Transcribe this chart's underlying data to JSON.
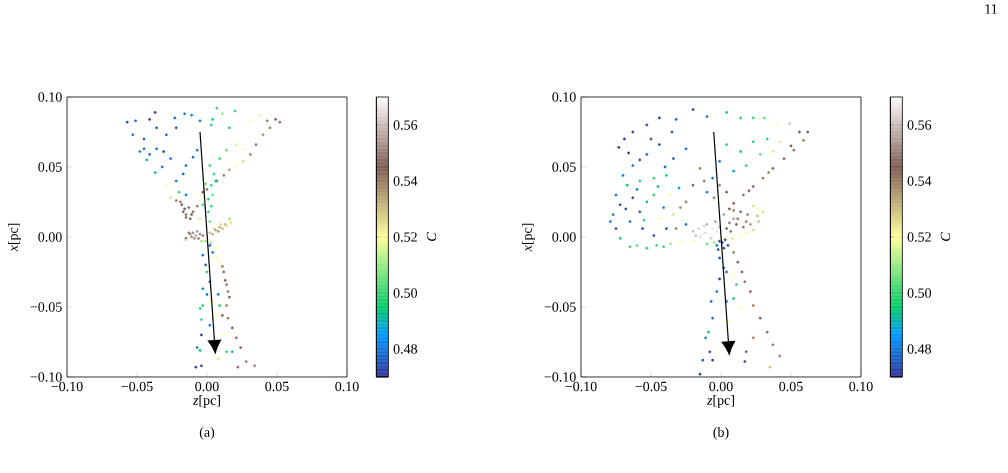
{
  "chart_data": [
    {
      "type": "scatter",
      "title": "(a)",
      "xlabel": "*z*[pc]",
      "ylabel": "*x*[pc]",
      "clabel": "*C*",
      "xlim": [
        -0.1,
        0.1
      ],
      "ylim": [
        -0.1,
        0.1
      ],
      "xticks": [
        {
          "value": -0.1,
          "label": "−0.10"
        },
        {
          "value": -0.05,
          "label": "−0.05"
        },
        {
          "value": 0,
          "label": "0.00"
        },
        0.05,
        {
          "value": 0.1,
          "label": "0.10"
        }
      ],
      "yticks": [
        {
          "value": -0.1,
          "label": "−0.10"
        },
        {
          "value": -0.05,
          "label": "−0.05"
        },
        {
          "value": 0,
          "label": "0.00"
        },
        0.05,
        {
          "value": 0.1,
          "label": "0.10"
        }
      ],
      "clim": [
        0.47,
        0.57
      ],
      "cticks": [
        0.48,
        {
          "value": 0.5,
          "label": "0.50"
        },
        0.52,
        0.54,
        0.56
      ],
      "marker": "circle",
      "series": [
        {
          "x": [
            -0.057,
            -0.051,
            -0.041,
            -0.037,
            -0.023,
            -0.016,
            -0.011,
            -0.005,
            0.004,
            0.007,
            0.011,
            0.02,
            0.016,
            0.003,
            0.031,
            0.038,
            0.043,
            0.049,
            0.052,
            0.045,
            0.04,
            0.035,
            0.031,
            0.026,
            0.021,
            0.016,
            0.012,
            0.007,
            0.003,
            0,
            -0.003,
            0.026,
            0.021,
            0.014,
            0.009,
            0.002,
            0.005,
            -0.007,
            -0.01,
            -0.015,
            -0.017,
            -0.022,
            -0.026,
            -0.031,
            -0.036,
            -0.041,
            -0.045,
            -0.048,
            -0.053,
            -0.045,
            -0.043,
            -0.037,
            -0.032,
            -0.029,
            -0.022,
            -0.036,
            -0.029,
            -0.026,
            -0.022,
            -0.018,
            -0.017,
            -0.015,
            -0.012,
            -0.01,
            -0.007,
            -0.015,
            -0.02,
            -0.005,
            -0.003,
            -0.005,
            0.001,
            0.002,
            -0.012,
            -0.007,
            -0.003,
            -0.009,
            -0.015,
            0.002,
            0.006,
            0.009,
            0.013,
            0.016,
            0.016,
            -0.001,
            -0.015,
            0.002,
            0.004,
            0.006,
            0.007,
            0.009,
            0.011,
            0.012,
            0.013,
            0.014,
            0.015,
            0.016,
            0.014,
            0.011,
            0.015,
            0.018,
            0.021,
            0.024,
            0.028,
            0.034,
            0.022,
            0.008,
            -0.003,
            -0.001,
            0,
            0.002,
            -0.003,
            0,
            -0.003,
            -0.005,
            0.003,
            0.008,
            0.009,
            0.007,
            -0.004,
            0.002,
            -0.004,
            -0.007,
            -0.005,
            -0.008,
            -0.004,
            0.014,
            0.018,
            0.012,
            -0.01,
            -0.005,
            -0.011,
            -0.006,
            -0.013,
            -0.008,
            0.004,
            0.008,
            0.011,
            0.014,
            0.005,
            0.01,
            0.017,
            0,
            -0.004,
            0.003,
            -0.016,
            -0.013,
            -0.015,
            -0.011,
            -0.019,
            0.001,
            0.004,
            0.003,
            -0.001,
            0.006
          ],
          "values": [
            0.082,
            0.083,
            0.084,
            0.089,
            0.085,
            0.088,
            0.087,
            0.083,
            0.084,
            0.092,
            0.088,
            0.09,
            0.078,
            0.08,
            0.082,
            0.087,
            0.083,
            0.084,
            0.082,
            0.078,
            0.073,
            0.066,
            0.059,
            0.054,
            0.051,
            0.048,
            0.044,
            0.04,
            0.037,
            0.034,
            0.032,
            0.063,
            0.066,
            0.062,
            0.056,
            0.051,
            0.045,
            0.062,
            0.057,
            0.051,
            0.045,
            0.04,
            0.056,
            0.061,
            0.063,
            0.059,
            0.063,
            0.061,
            0.073,
            0.07,
            0.055,
            0.046,
            0.05,
            0.073,
            0.078,
            0.078,
            0.037,
            0.028,
            0.026,
            0.023,
            0.018,
            0.016,
            0.013,
            0.018,
            0.022,
            0.03,
            0.032,
            0.03,
            0.023,
            0.013,
            0.018,
            0.011,
            0.002,
            0.004,
            0.001,
            -0.001,
            -0.001,
            0.003,
            0.005,
            0.007,
            0.009,
            0.011,
            0.013,
            -0.003,
            -0.002,
            -0.006,
            -0.011,
            -0.008,
            -0.014,
            -0.018,
            -0.021,
            -0.025,
            -0.031,
            -0.034,
            -0.039,
            -0.043,
            -0.049,
            -0.056,
            -0.058,
            -0.065,
            -0.072,
            -0.079,
            -0.089,
            -0.092,
            -0.093,
            -0.087,
            -0.013,
            -0.02,
            -0.025,
            -0.032,
            -0.037,
            -0.041,
            -0.049,
            -0.051,
            -0.046,
            -0.041,
            -0.049,
            -0.056,
            -0.059,
            -0.063,
            -0.07,
            -0.079,
            -0.081,
            -0.093,
            -0.092,
            -0.082,
            -0.082,
            -0.07,
            0.003,
            0.002,
            0,
            -0.001,
            0.003,
            0.001,
            0.002,
            0.004,
            0.006,
            0.008,
            0.006,
            0.009,
            0.01,
            -0.002,
            -0.003,
            -0.004,
            0.02,
            0.021,
            0.014,
            0.016,
            0.025,
            0.027,
            0.03,
            0.022,
            0.038,
            0.04
          ],
          "cvalues": [
            0.475,
            0.478,
            0.472,
            0.472,
            0.478,
            0.48,
            0.482,
            0.48,
            0.495,
            0.5,
            0.51,
            0.5,
            0.497,
            0.5,
            0.52,
            0.522,
            0.54,
            0.545,
            0.548,
            0.54,
            0.537,
            0.542,
            0.54,
            0.525,
            0.52,
            0.535,
            0.54,
            0.545,
            0.5,
            0.54,
            0.545,
            0.52,
            0.515,
            0.505,
            0.5,
            0.5,
            0.5,
            0.48,
            0.478,
            0.48,
            0.478,
            0.48,
            0.478,
            0.472,
            0.478,
            0.48,
            0.48,
            0.482,
            0.478,
            0.475,
            0.49,
            0.495,
            0.48,
            0.478,
            0.474,
            0.474,
            0.52,
            0.525,
            0.54,
            0.545,
            0.545,
            0.548,
            0.545,
            0.543,
            0.54,
            0.48,
            0.5,
            0.52,
            0.5,
            0.515,
            0.5,
            0.505,
            0.552,
            0.555,
            0.55,
            0.553,
            0.545,
            0.53,
            0.535,
            0.532,
            0.53,
            0.52,
            0.51,
            0.51,
            0.51,
            0.48,
            0.48,
            0.52,
            0.52,
            0.52,
            0.54,
            0.543,
            0.545,
            0.542,
            0.54,
            0.545,
            0.54,
            0.545,
            0.54,
            0.545,
            0.548,
            0.545,
            0.55,
            0.55,
            0.548,
            0.525,
            0.48,
            0.478,
            0.5,
            0.48,
            0.482,
            0.48,
            0.497,
            0.5,
            0.52,
            0.48,
            0.495,
            0.52,
            0.5,
            0.48,
            0.472,
            0.48,
            0.495,
            0.472,
            0.472,
            0.5,
            0.49,
            0.52,
            0.553,
            0.552,
            0.552,
            0.55,
            0.55,
            0.556,
            0.532,
            0.535,
            0.53,
            0.525,
            0.525,
            0.525,
            0.515,
            0.52,
            0.51,
            0.51,
            0.545,
            0.543,
            0.548,
            0.545,
            0.54,
            0.5,
            0.505,
            0.5,
            0.505,
            0.5
          ]
        }
      ],
      "annotations": [
        "11"
      ]
    },
    {
      "type": "scatter",
      "title": "(b)",
      "xlabel": "*z*[pc]",
      "ylabel": "*x*[pc]",
      "clabel": "*C*",
      "xlim": [
        -0.1,
        0.1
      ],
      "ylim": [
        -0.1,
        0.1
      ],
      "xticks": [
        {
          "value": -0.1,
          "label": "−0.10"
        },
        {
          "value": -0.05,
          "label": "−0.05"
        },
        {
          "value": 0,
          "label": "0.00"
        },
        0.05,
        {
          "value": 0.1,
          "label": "0.10"
        }
      ],
      "yticks": [
        {
          "value": -0.1,
          "label": "−0.10"
        },
        {
          "value": -0.05,
          "label": "−0.05"
        },
        {
          "value": 0,
          "label": "0.00"
        },
        0.05,
        {
          "value": 0.1,
          "label": "0.10"
        }
      ],
      "clim": [
        0.47,
        0.57
      ],
      "cticks": [
        0.48,
        {
          "value": 0.5,
          "label": "0.50"
        },
        0.52,
        0.54,
        0.56
      ],
      "marker": "circle",
      "series": [
        {
          "x": [
            -0.073,
            -0.069,
            -0.063,
            -0.053,
            -0.044,
            -0.032,
            -0.02,
            -0.01,
            0.004,
            0.014,
            0.023,
            0.031,
            0.04,
            0.049,
            0.056,
            0.062,
            0.059,
            0.052,
            0.045,
            0.037,
            0.03,
            0.023,
            0.016,
            0.009,
            0.042,
            0.037,
            0.033,
            0.028,
            0.023,
            0.018,
            0.014,
            0.009,
            0.004,
            -0.001,
            -0.006,
            -0.01,
            -0.001,
            0.004,
            -0.015,
            -0.02,
            -0.025,
            -0.029,
            -0.034,
            -0.025,
            -0.034,
            -0.044,
            -0.053,
            -0.063,
            -0.07,
            -0.067,
            -0.058,
            -0.048,
            -0.039,
            -0.075,
            -0.072,
            -0.077,
            -0.079,
            -0.075,
            -0.072,
            -0.065,
            -0.053,
            -0.041,
            -0.029,
            -0.02,
            -0.01,
            -0.063,
            -0.058,
            -0.065,
            -0.056,
            -0.048,
            -0.044,
            -0.039,
            -0.048,
            -0.036,
            -0.032,
            -0.025,
            -0.041,
            -0.053,
            -0.011,
            -0.02,
            -0.015,
            -0.008,
            -0.003,
            -0.01,
            -0.004,
            0.004,
            0.011,
            0.018,
            0.026,
            0.03,
            0.023,
            0.014,
            0.009,
            0.004,
            0.014,
            0.023,
            0.018,
            -0.001,
            0.002,
            -0.003,
            0.005,
            -0.001,
            0.002,
            -0.001,
            -0.003,
            -0.007,
            -0.006,
            -0.009,
            -0.011,
            -0.008,
            -0.013,
            -0.006,
            -0.015,
            0.009,
            0.012,
            0.015,
            0.017,
            0.021,
            0.023,
            0.028,
            0.033,
            0.037,
            0.042,
            0.035,
            0.011,
            0.009,
            0.014,
            0.004,
            0.005,
            0.018,
            0.017,
            0.023,
            0.004,
            0.009,
            -0.016,
            -0.006,
            -0.013,
            -0.007,
            -0.018,
            -0.001,
            -0.012,
            0.007,
            0.016,
            0.021,
            0.027,
            0.012,
            0.019,
            0.027,
            0.009,
            0.002,
            0.006,
            0,
            0.008,
            -0.005,
            -0.036,
            -0.046,
            -0.06,
            -0.06,
            -0.068,
            -0.055,
            -0.045,
            -0.03,
            -0.04,
            -0.058,
            -0.066,
            -0.05,
            -0.035,
            0.05,
            0.034,
            0.02,
            0.006,
            -0.012,
            -0.005,
            0.001,
            0.003,
            -0.002
          ],
          "values": [
            0.064,
            0.07,
            0.075,
            0.08,
            0.085,
            0.084,
            0.091,
            0.086,
            0.089,
            0.085,
            0.085,
            0.085,
            0.08,
            0.081,
            0.075,
            0.075,
            0.069,
            0.062,
            0.056,
            0.049,
            0.042,
            0.036,
            0.03,
            0.024,
            0.068,
            0.061,
            0.07,
            0.059,
            0.068,
            0.051,
            0.061,
            0.047,
            0.066,
            0.054,
            0.042,
            0.032,
            0.037,
            0.032,
            0.049,
            0.037,
            0.025,
            0.021,
            0.016,
            0.063,
            0.056,
            0.066,
            0.059,
            0.051,
            0.044,
            0.037,
            0.04,
            0.042,
            0.044,
            0.03,
            0.023,
            0.016,
            0.011,
            0.006,
            -0.001,
            -0.007,
            -0.008,
            -0.007,
            -0.003,
            -0.003,
            -0.005,
            0.028,
            0.018,
            0.011,
            0.006,
            0.001,
            0.013,
            0.006,
            0.03,
            0.03,
            0.006,
            0.009,
            0.021,
            0.025,
            0.003,
            0.004,
            0,
            0.001,
            0.004,
            0.009,
            0.011,
            0.006,
            0.009,
            0.011,
            0.015,
            0.018,
            0.022,
            0.018,
            0.013,
            0,
            0.001,
            0.005,
            0.003,
            -0.003,
            -0.008,
            -0.006,
            -0.006,
            -0.015,
            -0.022,
            -0.03,
            -0.039,
            -0.046,
            -0.058,
            -0.068,
            -0.072,
            -0.082,
            -0.088,
            -0.088,
            -0.098,
            -0.011,
            -0.018,
            -0.025,
            -0.032,
            -0.039,
            -0.049,
            -0.058,
            -0.068,
            -0.077,
            -0.085,
            -0.093,
            -0.034,
            -0.044,
            -0.051,
            -0.046,
            -0.06,
            -0.082,
            -0.089,
            -0.072,
            -0.025,
            -0.027,
            0.006,
            0.006,
            0.002,
            -0.001,
            0.001,
            0.007,
            0.008,
            0.004,
            0.007,
            0.009,
            0.011,
            0.013,
            0.016,
            0.02,
            0.019,
            0.016,
            0.01,
            -0.002,
            -0.001,
            -0.004,
            -0.005,
            -0.006,
            -0.006,
            0.034,
            0.02,
            0.012,
            0.036,
            0.035,
            0.05,
            0.055,
            0.06,
            0.07,
            0.075,
            0.065,
            0.046,
            0.033,
            0.02,
            0.04,
            0.028,
            -0.004,
            -0.002,
            -0.009
          ],
          "cvalues": [
            0.47,
            0.472,
            0.472,
            0.474,
            0.472,
            0.478,
            0.474,
            0.48,
            0.495,
            0.5,
            0.5,
            0.505,
            0.52,
            0.56,
            0.545,
            0.545,
            0.54,
            0.542,
            0.545,
            0.545,
            0.54,
            0.545,
            0.54,
            0.545,
            0.525,
            0.515,
            0.5,
            0.505,
            0.497,
            0.5,
            0.495,
            0.485,
            0.497,
            0.48,
            0.48,
            0.482,
            0.55,
            0.545,
            0.54,
            0.545,
            0.54,
            0.538,
            0.525,
            0.478,
            0.474,
            0.472,
            0.478,
            0.48,
            0.482,
            0.495,
            0.5,
            0.5,
            0.497,
            0.48,
            0.472,
            0.48,
            0.48,
            0.474,
            0.497,
            0.5,
            0.5,
            0.5,
            0.52,
            0.52,
            0.505,
            0.472,
            0.474,
            0.48,
            0.472,
            0.474,
            0.52,
            0.474,
            0.5,
            0.52,
            0.54,
            0.48,
            0.48,
            0.497,
            0.565,
            0.56,
            0.565,
            0.568,
            0.565,
            0.558,
            0.555,
            0.545,
            0.545,
            0.54,
            0.53,
            0.525,
            0.525,
            0.545,
            0.555,
            0.52,
            0.52,
            0.525,
            0.52,
            0.472,
            0.472,
            0.48,
            0.474,
            0.474,
            0.478,
            0.472,
            0.48,
            0.48,
            0.478,
            0.495,
            0.48,
            0.474,
            0.474,
            0.472,
            0.472,
            0.54,
            0.545,
            0.545,
            0.542,
            0.545,
            0.54,
            0.545,
            0.548,
            0.55,
            0.55,
            0.53,
            0.5,
            0.495,
            0.52,
            0.48,
            0.52,
            0.545,
            0.474,
            0.54,
            0.48,
            0.52,
            0.562,
            0.566,
            0.568,
            0.562,
            0.56,
            0.56,
            0.562,
            0.54,
            0.54,
            0.535,
            0.53,
            0.548,
            0.54,
            0.52,
            0.55,
            0.555,
            0.55,
            0.515,
            0.515,
            0.51,
            0.51,
            0.5,
            0.505,
            0.48,
            0.474,
            0.5,
            0.495,
            0.485,
            0.478,
            0.474,
            0.472,
            0.474,
            0.474,
            0.545,
            0.54,
            0.545,
            0.545,
            0.54,
            0.55,
            0.47,
            0.472,
            0.474
          ]
        }
      ]
    }
  ]
}
